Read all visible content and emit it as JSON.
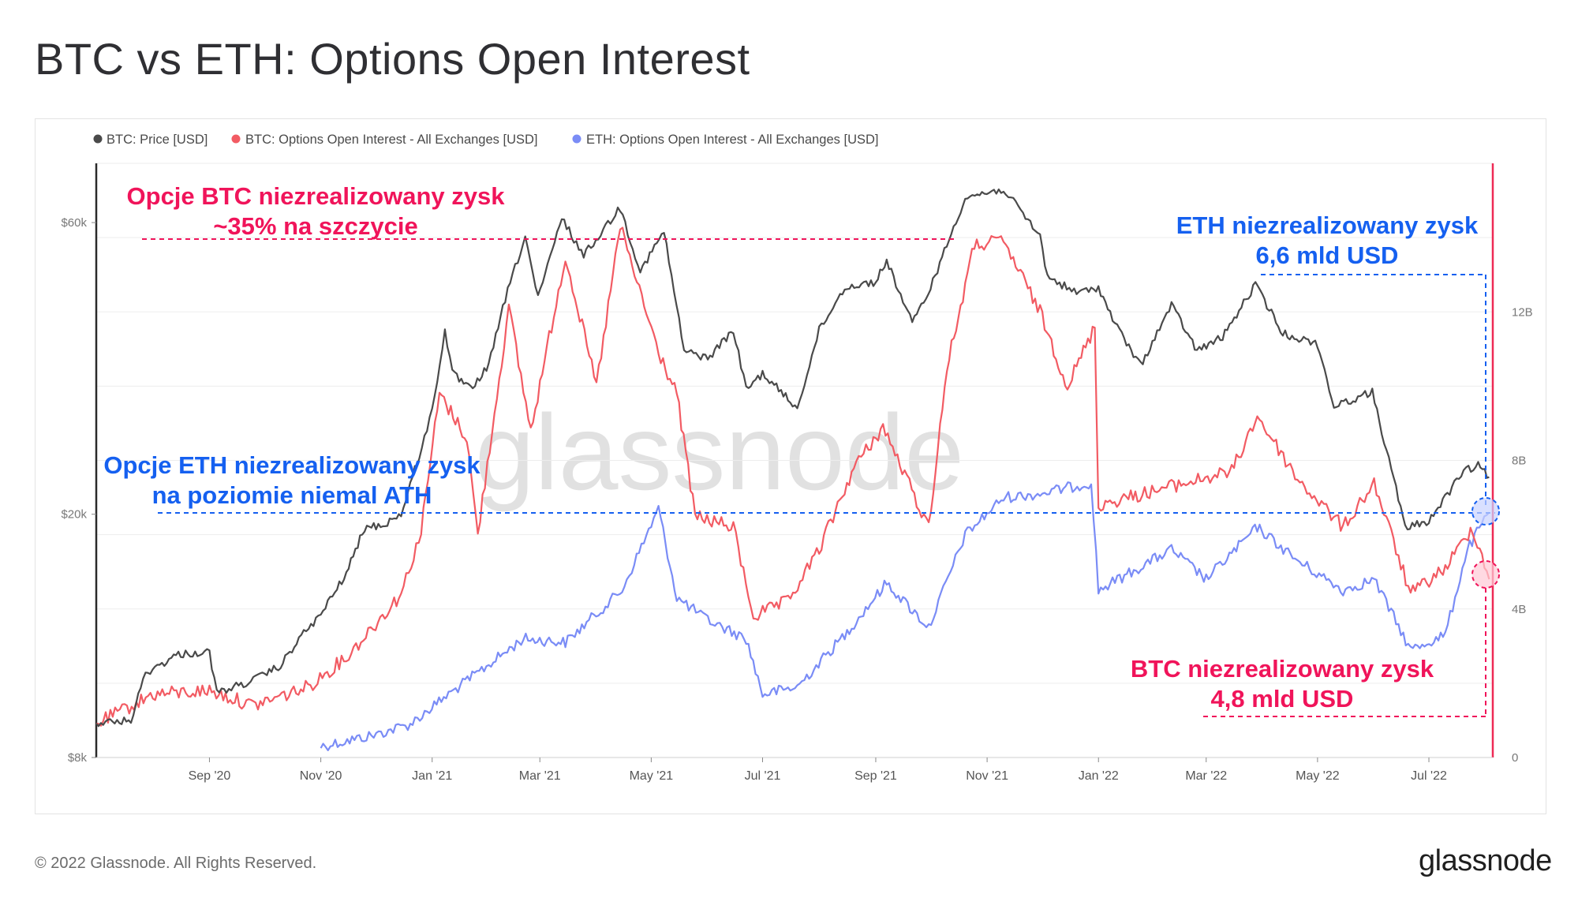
{
  "page": {
    "title": "BTC vs ETH: Options Open Interest",
    "copyright": "© 2022 Glassnode. All Rights Reserved.",
    "logo": "glassnode",
    "watermark": "glassnode"
  },
  "colors": {
    "btc_price": "#4a4a4a",
    "btc_oi": "#f25b63",
    "eth_oi": "#7a8cf6",
    "annotation_red": "#f0145a",
    "annotation_blue": "#1560f0"
  },
  "annotations": {
    "btc_peak_line1": "Opcje BTC niezrealizowany zysk",
    "btc_peak_line2": "~35% na szczycie",
    "eth_ath_line1": "Opcje ETH niezrealizowany zysk",
    "eth_ath_line2": "na poziomie niemal ATH",
    "eth_now_line1": "ETH niezrealizowany zysk",
    "eth_now_line2": "6,6 mld USD",
    "btc_now_line1": "BTC niezrealizowany zysk",
    "btc_now_line2": "4,8 mld USD"
  },
  "chart_data": {
    "type": "line",
    "title": "BTC vs ETH: Options Open Interest",
    "legend_position": "top-left",
    "grid": true,
    "x_range": [
      "2020-07-01",
      "2022-08-05"
    ],
    "x_ticks": [
      {
        "date": "2020-09-01",
        "label": "Sep '20"
      },
      {
        "date": "2020-11-01",
        "label": "Nov '20"
      },
      {
        "date": "2021-01-01",
        "label": "Jan '21"
      },
      {
        "date": "2021-03-01",
        "label": "Mar '21"
      },
      {
        "date": "2021-05-01",
        "label": "May '21"
      },
      {
        "date": "2021-07-01",
        "label": "Jul '21"
      },
      {
        "date": "2021-09-01",
        "label": "Sep '21"
      },
      {
        "date": "2021-11-01",
        "label": "Nov '21"
      },
      {
        "date": "2022-01-01",
        "label": "Jan '22"
      },
      {
        "date": "2022-03-01",
        "label": "Mar '22"
      },
      {
        "date": "2022-05-01",
        "label": "May '22"
      },
      {
        "date": "2022-07-01",
        "label": "Jul '22"
      }
    ],
    "y_left": {
      "scale": "log",
      "range": [
        8000,
        75000
      ],
      "ticks": [
        {
          "value": 8000,
          "label": "$8k"
        },
        {
          "value": 20000,
          "label": "$20k"
        },
        {
          "value": 60000,
          "label": "$60k"
        }
      ]
    },
    "y_right": {
      "scale": "linear",
      "range": [
        0,
        16000000000
      ],
      "ticks": [
        {
          "value": 0,
          "label": "0"
        },
        {
          "value": 4000000000,
          "label": "4B"
        },
        {
          "value": 8000000000,
          "label": "8B"
        },
        {
          "value": 12000000000,
          "label": "12B"
        }
      ]
    },
    "series": [
      {
        "name": "BTC: Price [USD]",
        "axis": "left",
        "points": [
          [
            "2020-07-01",
            9100
          ],
          [
            "2020-07-20",
            9200
          ],
          [
            "2020-07-28",
            11000
          ],
          [
            "2020-08-15",
            11800
          ],
          [
            "2020-09-01",
            11900
          ],
          [
            "2020-09-05",
            10200
          ],
          [
            "2020-09-25",
            10700
          ],
          [
            "2020-10-10",
            11300
          ],
          [
            "2020-10-20",
            12500
          ],
          [
            "2020-11-01",
            13700
          ],
          [
            "2020-11-15",
            16000
          ],
          [
            "2020-11-25",
            19000
          ],
          [
            "2020-12-05",
            19200
          ],
          [
            "2020-12-15",
            20000
          ],
          [
            "2020-12-25",
            25000
          ],
          [
            "2021-01-01",
            29500
          ],
          [
            "2021-01-08",
            40000
          ],
          [
            "2021-01-12",
            34000
          ],
          [
            "2021-01-22",
            32000
          ],
          [
            "2021-02-01",
            35000
          ],
          [
            "2021-02-10",
            45000
          ],
          [
            "2021-02-21",
            57000
          ],
          [
            "2021-02-28",
            45000
          ],
          [
            "2021-03-13",
            61000
          ],
          [
            "2021-03-25",
            53000
          ],
          [
            "2021-04-14",
            63500
          ],
          [
            "2021-04-25",
            50000
          ],
          [
            "2021-05-08",
            58000
          ],
          [
            "2021-05-19",
            37000
          ],
          [
            "2021-06-01",
            36000
          ],
          [
            "2021-06-15",
            40000
          ],
          [
            "2021-06-22",
            32000
          ],
          [
            "2021-07-01",
            34000
          ],
          [
            "2021-07-20",
            29800
          ],
          [
            "2021-08-01",
            40000
          ],
          [
            "2021-08-15",
            47000
          ],
          [
            "2021-09-01",
            48000
          ],
          [
            "2021-09-07",
            52000
          ],
          [
            "2021-09-21",
            41000
          ],
          [
            "2021-10-01",
            47000
          ],
          [
            "2021-10-20",
            66000
          ],
          [
            "2021-11-10",
            68000
          ],
          [
            "2021-11-30",
            57000
          ],
          [
            "2021-12-04",
            49000
          ],
          [
            "2021-12-20",
            46000
          ],
          [
            "2022-01-01",
            47000
          ],
          [
            "2022-01-10",
            41000
          ],
          [
            "2022-01-24",
            35000
          ],
          [
            "2022-02-10",
            44000
          ],
          [
            "2022-02-24",
            37000
          ],
          [
            "2022-03-10",
            39000
          ],
          [
            "2022-03-28",
            47500
          ],
          [
            "2022-04-12",
            39500
          ],
          [
            "2022-05-01",
            38000
          ],
          [
            "2022-05-10",
            30000
          ],
          [
            "2022-05-31",
            31700
          ],
          [
            "2022-06-13",
            22000
          ],
          [
            "2022-06-18",
            19000
          ],
          [
            "2022-07-01",
            19500
          ],
          [
            "2022-07-20",
            23500
          ],
          [
            "2022-07-28",
            24000
          ],
          [
            "2022-08-03",
            23000
          ]
        ]
      },
      {
        "name": "BTC: Options Open Interest - All Exchanges [USD]",
        "axis": "right",
        "points": [
          [
            "2020-07-01",
            900000000
          ],
          [
            "2020-08-01",
            1700000000
          ],
          [
            "2020-09-01",
            1800000000
          ],
          [
            "2020-09-25",
            1400000000
          ],
          [
            "2020-10-25",
            1900000000
          ],
          [
            "2020-11-15",
            2700000000
          ],
          [
            "2020-12-01",
            3600000000
          ],
          [
            "2020-12-15",
            4400000000
          ],
          [
            "2020-12-26",
            6100000000
          ],
          [
            "2021-01-05",
            9800000000
          ],
          [
            "2021-01-20",
            8600000000
          ],
          [
            "2021-01-26",
            6000000000
          ],
          [
            "2021-02-12",
            12100000000
          ],
          [
            "2021-02-24",
            8800000000
          ],
          [
            "2021-03-15",
            13500000000
          ],
          [
            "2021-04-01",
            10000000000
          ],
          [
            "2021-04-14",
            14300000000
          ],
          [
            "2021-05-05",
            10900000000
          ],
          [
            "2021-05-15",
            9800000000
          ],
          [
            "2021-05-25",
            6500000000
          ],
          [
            "2021-06-15",
            6200000000
          ],
          [
            "2021-06-26",
            3800000000
          ],
          [
            "2021-07-15",
            4200000000
          ],
          [
            "2021-08-01",
            5600000000
          ],
          [
            "2021-08-20",
            7800000000
          ],
          [
            "2021-09-05",
            8900000000
          ],
          [
            "2021-09-30",
            6200000000
          ],
          [
            "2021-10-10",
            10500000000
          ],
          [
            "2021-10-25",
            13800000000
          ],
          [
            "2021-11-10",
            13900000000
          ],
          [
            "2021-11-30",
            12000000000
          ],
          [
            "2021-12-15",
            10000000000
          ],
          [
            "2021-12-30",
            11600000000
          ],
          [
            "2022-01-01",
            6800000000
          ],
          [
            "2022-01-25",
            7100000000
          ],
          [
            "2022-02-10",
            7300000000
          ],
          [
            "2022-03-15",
            7700000000
          ],
          [
            "2022-03-29",
            9200000000
          ],
          [
            "2022-04-20",
            7500000000
          ],
          [
            "2022-05-15",
            6200000000
          ],
          [
            "2022-06-01",
            7400000000
          ],
          [
            "2022-06-21",
            4400000000
          ],
          [
            "2022-07-10",
            5100000000
          ],
          [
            "2022-07-25",
            6200000000
          ],
          [
            "2022-08-03",
            4800000000
          ]
        ]
      },
      {
        "name": "ETH: Options Open Interest - All Exchanges [USD]",
        "axis": "right",
        "points": [
          [
            "2020-11-01",
            300000000
          ],
          [
            "2020-11-30",
            600000000
          ],
          [
            "2020-12-20",
            900000000
          ],
          [
            "2021-01-10",
            1700000000
          ],
          [
            "2021-02-01",
            2500000000
          ],
          [
            "2021-02-20",
            3200000000
          ],
          [
            "2021-03-15",
            3100000000
          ],
          [
            "2021-04-15",
            4500000000
          ],
          [
            "2021-05-05",
            6700000000
          ],
          [
            "2021-05-15",
            4300000000
          ],
          [
            "2021-06-01",
            3700000000
          ],
          [
            "2021-06-22",
            3200000000
          ],
          [
            "2021-07-01",
            1700000000
          ],
          [
            "2021-07-20",
            1900000000
          ],
          [
            "2021-08-15",
            3300000000
          ],
          [
            "2021-09-07",
            4700000000
          ],
          [
            "2021-09-30",
            3500000000
          ],
          [
            "2021-10-20",
            6000000000
          ],
          [
            "2021-11-10",
            7000000000
          ],
          [
            "2021-11-30",
            7100000000
          ],
          [
            "2021-12-28",
            7400000000
          ],
          [
            "2022-01-01",
            4500000000
          ],
          [
            "2022-02-10",
            5600000000
          ],
          [
            "2022-03-01",
            4800000000
          ],
          [
            "2022-03-29",
            6200000000
          ],
          [
            "2022-04-20",
            5300000000
          ],
          [
            "2022-05-15",
            4500000000
          ],
          [
            "2022-06-01",
            4800000000
          ],
          [
            "2022-06-21",
            2900000000
          ],
          [
            "2022-07-10",
            3300000000
          ],
          [
            "2022-07-22",
            5600000000
          ],
          [
            "2022-08-03",
            6600000000
          ]
        ]
      }
    ]
  }
}
